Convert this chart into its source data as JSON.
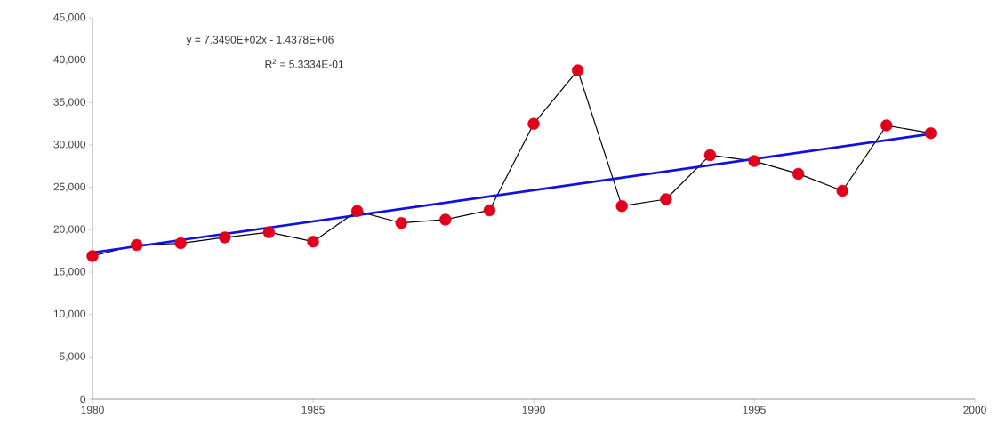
{
  "chart_data": {
    "type": "line",
    "x": [
      1980,
      1981,
      1982,
      1983,
      1984,
      1985,
      1986,
      1987,
      1988,
      1989,
      1990,
      1991,
      1992,
      1993,
      1994,
      1995,
      1996,
      1997,
      1998,
      1999
    ],
    "series": [
      {
        "color": "#000000",
        "marker": "circle",
        "colors": [
          "#e0001b",
          "#e0001b",
          "#e0001b",
          "#e0001b",
          "#e0001b",
          "#e0001b",
          "#e0001b",
          "#e0001b",
          "#e0001b",
          "#e0001b",
          "#e0001b",
          "#e0001b",
          "#e0001b",
          "#e0001b",
          "#e0001b",
          "#e0001b",
          "#e0001b",
          "#e0001b",
          "#e0001b",
          "#e0001b"
        ],
        "values": [
          16900,
          18200,
          18400,
          19100,
          19700,
          18600,
          22200,
          20800,
          21200,
          22300,
          32500,
          38800,
          22800,
          23600,
          28800,
          28100,
          26600,
          24600,
          32300,
          31400
        ]
      },
      {
        "type": "line",
        "color": "#1010e0",
        "marker": "none",
        "x": [
          1980,
          1999
        ],
        "values": [
          17300,
          31300
        ]
      }
    ],
    "xlim": [
      1980,
      2000
    ],
    "xticks": [
      1980,
      1985,
      1990,
      1995,
      2000
    ],
    "ylim": [
      0,
      45000
    ],
    "yticks": [
      {
        "value": 0,
        "label": "0"
      },
      {
        "value": 5000,
        "label": "5,000"
      },
      {
        "value": 10000,
        "label": "10,000"
      },
      {
        "value": 15000,
        "label": "15,000"
      },
      {
        "value": 20000,
        "label": "20,000"
      },
      {
        "value": 25000,
        "label": "25,000"
      },
      {
        "value": 30000,
        "label": "30,000"
      },
      {
        "value": 35000,
        "label": "35,000"
      },
      {
        "value": 40000,
        "label": "40,000"
      },
      {
        "value": 45000,
        "label": "45,000"
      }
    ],
    "annotations": [
      "y = 7.3490E+02x - 1.4378E+06",
      "R$^{2}$ = 5.3334E-01"
    ]
  }
}
